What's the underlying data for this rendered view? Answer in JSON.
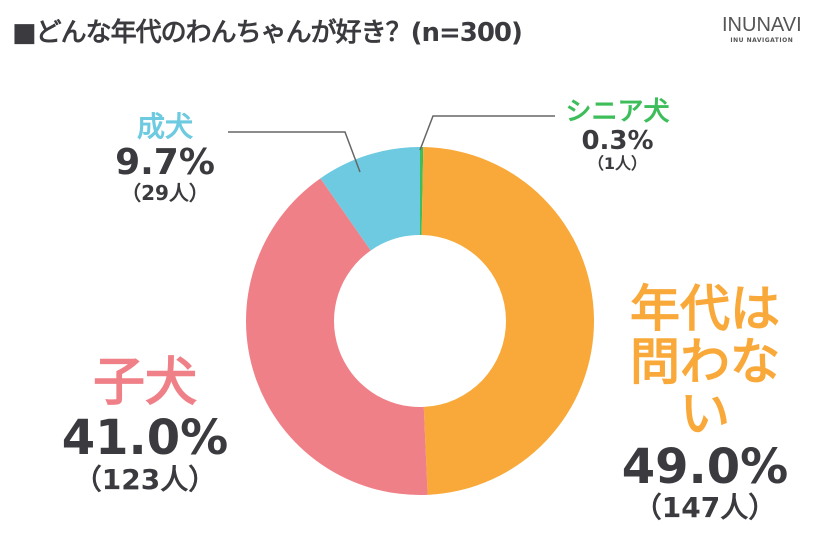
{
  "title": "■どんな年代のわんちゃんが好き？(n=300)",
  "logo": {
    "main": "INUNAVI",
    "sub": "INU NAVIGATION"
  },
  "chart_data": {
    "type": "pie",
    "donut": true,
    "title": "■どんな年代のわんちゃんが好き？(n=300)",
    "n": 300,
    "slices": [
      {
        "name": "シニア犬",
        "percent": "0.3%",
        "value": 0.3,
        "count": "（1人）",
        "color": "#3dbe5a"
      },
      {
        "name": "年代は問わない",
        "percent": "49.0%",
        "value": 49.0,
        "count": "（147人）",
        "color": "#f9a93a"
      },
      {
        "name": "子犬",
        "percent": "41.0%",
        "value": 41.0,
        "count": "（123人）",
        "color": "#f08088"
      },
      {
        "name": "成犬",
        "percent": "9.7%",
        "value": 9.7,
        "count": "（29人）",
        "color": "#6dcae0"
      }
    ]
  }
}
